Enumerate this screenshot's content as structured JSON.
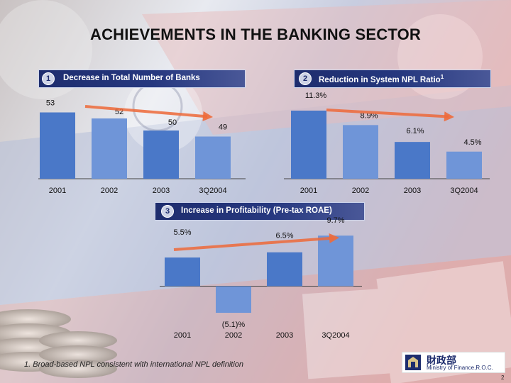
{
  "page": {
    "title": "ACHIEVEMENTS IN THE BANKING SECTOR",
    "footnote": "1. Broad-based NPL consistent with international NPL definition",
    "page_number": "2",
    "logo": {
      "chinese": "財政部",
      "english": "Ministry of Finance,R.O.C."
    }
  },
  "colors": {
    "bar": "#4a78c8",
    "bar_light": "#6f95d8",
    "arrow": "#ee6a3a",
    "banner": "#1e2d6e"
  },
  "chart_data": [
    {
      "type": "bar",
      "number": "1",
      "title": "Decrease in Total Number of Banks",
      "categories": [
        "2001",
        "2002",
        "2003",
        "3Q2004"
      ],
      "values": [
        53,
        52,
        50,
        49
      ],
      "labels": [
        "53",
        "52",
        "50",
        "49"
      ],
      "ylim": [
        42,
        54
      ],
      "trend_arrow": "down"
    },
    {
      "type": "bar",
      "number": "2",
      "title": "Reduction in System NPL Ratio",
      "title_superscript": "1",
      "categories": [
        "2001",
        "2002",
        "2003",
        "3Q2004"
      ],
      "values": [
        11.3,
        8.9,
        6.1,
        4.5
      ],
      "labels": [
        "11.3%",
        "8.9%",
        "6.1%",
        "4.5%"
      ],
      "ylim": [
        0,
        12
      ],
      "trend_arrow": "down"
    },
    {
      "type": "bar",
      "number": "3",
      "title": "Increase in Profitability (Pre-tax ROAE)",
      "categories": [
        "2001",
        "2002",
        "2003",
        "3Q2004"
      ],
      "values": [
        5.5,
        -5.1,
        6.5,
        9.7
      ],
      "labels": [
        "5.5%",
        "(5.1)%",
        "6.5%",
        "9.7%"
      ],
      "ylim": [
        -7,
        10
      ],
      "trend_arrow": "up"
    }
  ]
}
